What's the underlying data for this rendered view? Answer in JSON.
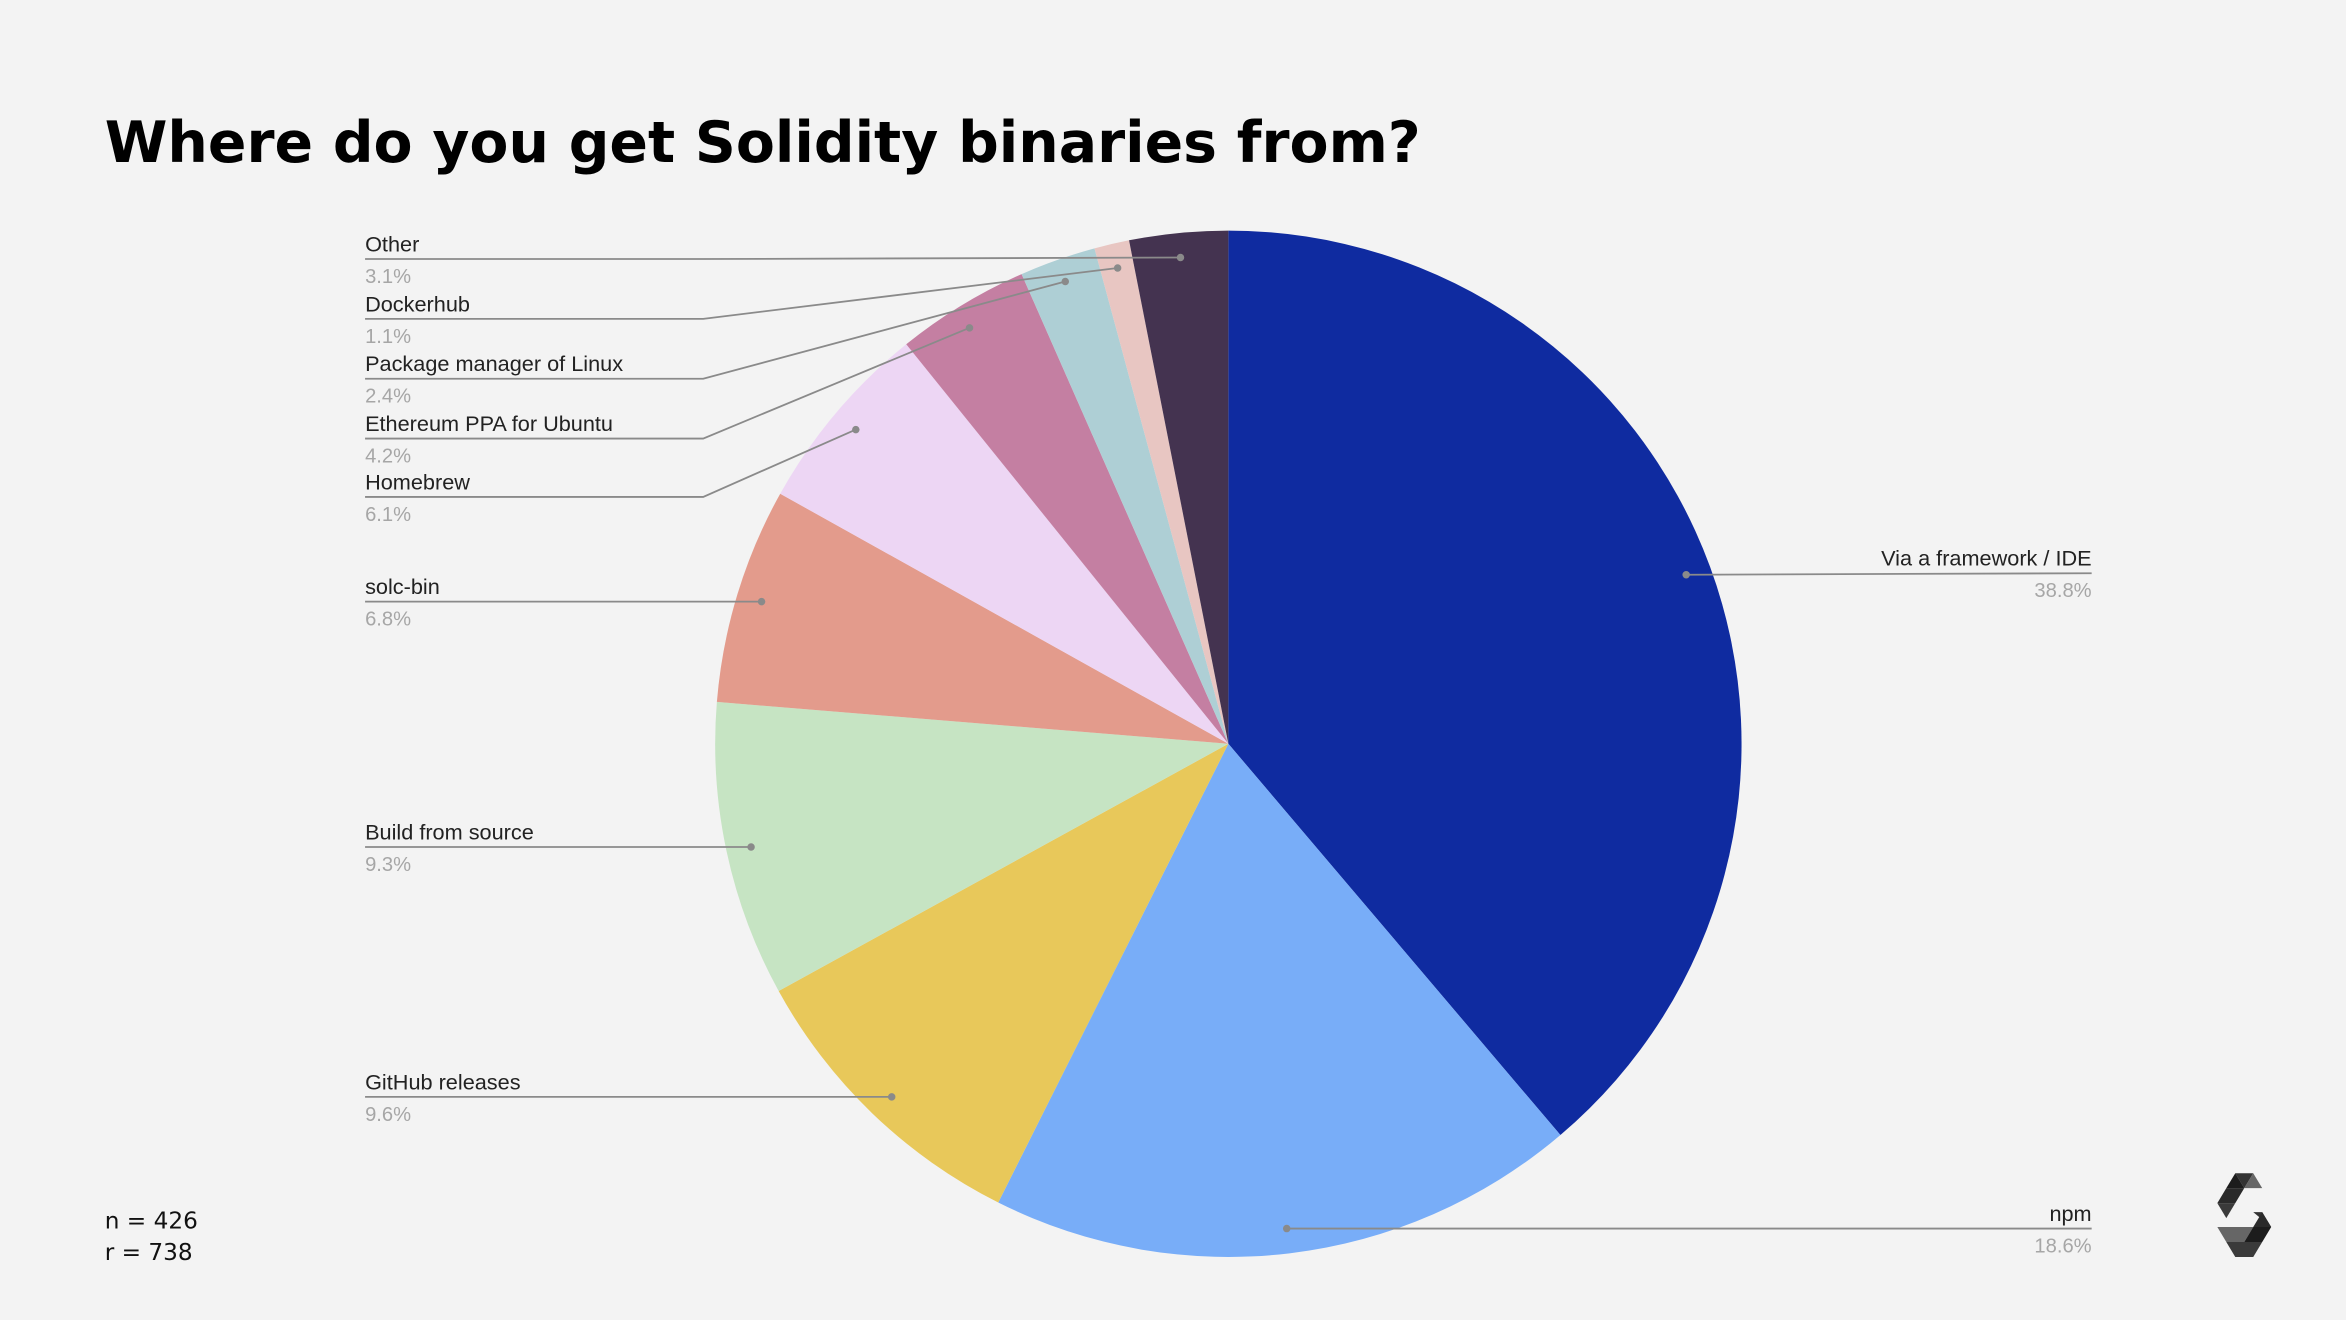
{
  "title": "Where do you get Solidity binaries from?",
  "footer": {
    "n": "n = 426",
    "r": "r = 738"
  },
  "logo": "solidity-logo",
  "chart_data": {
    "type": "pie",
    "title": "Where do you get Solidity binaries from?",
    "start": "top, clockwise",
    "legend": "leader-line labels",
    "slices": [
      {
        "label": "Via a framework / IDE",
        "value": 38.8,
        "display": "38.8%",
        "color": "#0f2ba0"
      },
      {
        "label": "npm",
        "value": 18.6,
        "display": "18.6%",
        "color": "#78adf8"
      },
      {
        "label": "GitHub releases",
        "value": 9.6,
        "display": "9.6%",
        "color": "#e8c85a"
      },
      {
        "label": "Build from source",
        "value": 9.3,
        "display": "9.3%",
        "color": "#c6e4c3"
      },
      {
        "label": "solc-bin",
        "value": 6.8,
        "display": "6.8%",
        "color": "#e39b8c"
      },
      {
        "label": "Homebrew",
        "value": 6.1,
        "display": "6.1%",
        "color": "#edd6f4"
      },
      {
        "label": "Ethereum PPA for Ubuntu",
        "value": 4.2,
        "display": "4.2%",
        "color": "#c47fa2"
      },
      {
        "label": "Package manager of Linux",
        "value": 2.4,
        "display": "2.4%",
        "color": "#aecfd5"
      },
      {
        "label": "Dockerhub",
        "value": 1.1,
        "display": "1.1%",
        "color": "#e8c6c2"
      },
      {
        "label": "Other",
        "value": 3.1,
        "display": "3.1%",
        "color": "#443350"
      }
    ]
  }
}
